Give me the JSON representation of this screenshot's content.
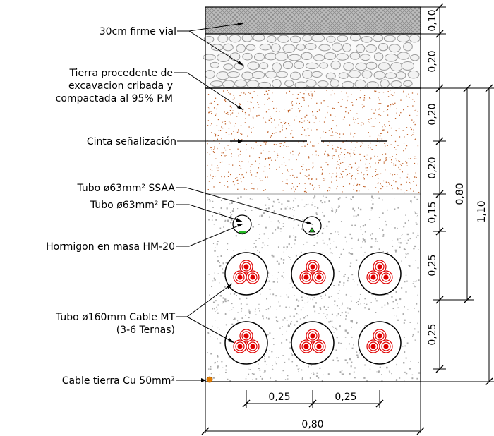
{
  "labels": {
    "firme": "30cm firme vial",
    "tierra_1": "Tierra procedente de",
    "tierra_2": "excavacion cribada y",
    "tierra_3": "compactada al 95% P.M",
    "cinta": "Cinta señalización",
    "tubo_ssaa": "Tubo ø63mm² SSAA",
    "tubo_fo": "Tubo ø63mm² FO",
    "hormigon": "Hormigon en masa HM-20",
    "tubo_mt_1": "Tubo ø160mm Cable MT",
    "tubo_mt_2": "(3-6 Ternas)",
    "cable_tierra": "Cable tierra Cu 50mm²"
  },
  "dims": {
    "right_layers": [
      "0,10",
      "0,20",
      "0,20",
      "0,20",
      "0,15",
      "0,25",
      "0,25"
    ],
    "depth_short": "0,80",
    "depth_total": "1,10",
    "bottom_spacing_1": "0,25",
    "bottom_spacing_2": "0,25",
    "bottom_width": "0,80"
  },
  "colors": {
    "line": "#000000",
    "cable_red": "#e00000",
    "soil_dots": "#c0622a",
    "concrete_dots": "#a9a9a9",
    "gravel": "#9a9a9a",
    "ground_wire": "#e07b00",
    "fo_mark": "#22bb22"
  }
}
